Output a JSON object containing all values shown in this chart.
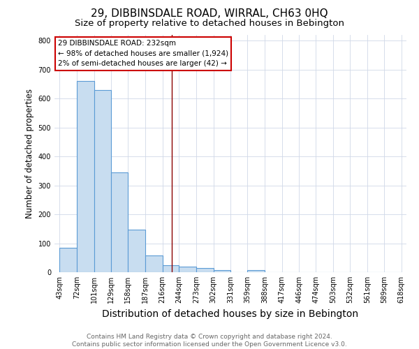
{
  "title": "29, DIBBINSDALE ROAD, WIRRAL, CH63 0HQ",
  "subtitle": "Size of property relative to detached houses in Bebington",
  "xlabel": "Distribution of detached houses by size in Bebington",
  "ylabel": "Number of detached properties",
  "bin_labels": [
    "43sqm",
    "72sqm",
    "101sqm",
    "129sqm",
    "158sqm",
    "187sqm",
    "216sqm",
    "244sqm",
    "273sqm",
    "302sqm",
    "331sqm",
    "359sqm",
    "388sqm",
    "417sqm",
    "446sqm",
    "474sqm",
    "503sqm",
    "532sqm",
    "561sqm",
    "589sqm",
    "618sqm"
  ],
  "bar_heights": [
    85,
    660,
    630,
    345,
    148,
    58,
    25,
    20,
    15,
    8,
    0,
    7,
    0,
    0,
    0,
    0,
    0,
    0,
    0,
    0
  ],
  "bar_color": "#c8ddf0",
  "bar_edge_color": "#5b9bd5",
  "ylim": [
    0,
    820
  ],
  "yticks": [
    0,
    100,
    200,
    300,
    400,
    500,
    600,
    700,
    800
  ],
  "red_line_x": 232,
  "annotation_text": "29 DIBBINSDALE ROAD: 232sqm\n← 98% of detached houses are smaller (1,924)\n2% of semi-detached houses are larger (42) →",
  "footer_text": "Contains HM Land Registry data © Crown copyright and database right 2024.\nContains public sector information licensed under the Open Government Licence v3.0.",
  "title_fontsize": 11,
  "subtitle_fontsize": 9.5,
  "xlabel_fontsize": 10,
  "ylabel_fontsize": 8.5,
  "tick_fontsize": 7,
  "annotation_fontsize": 7.5,
  "footer_fontsize": 6.5,
  "bin_edges": [
    43,
    72,
    101,
    129,
    158,
    187,
    216,
    244,
    273,
    302,
    331,
    359,
    388,
    417,
    446,
    474,
    503,
    532,
    561,
    589,
    618
  ]
}
